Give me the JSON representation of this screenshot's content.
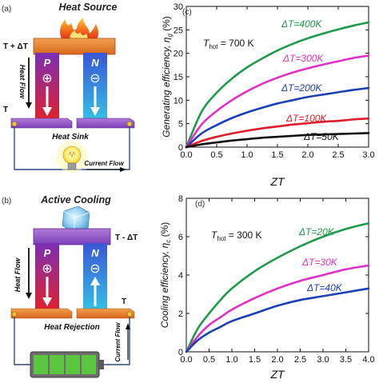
{
  "panels": {
    "a": {
      "tag": "(a)",
      "title": "Heat Source",
      "hot_side": "T + ΔT",
      "cold_side": "T",
      "heat_flow": "Heat Flow",
      "heat_sink": "Heat Sink",
      "current_flow": "Current Flow",
      "leg_p": "P",
      "leg_n": "N",
      "plus": "⊕",
      "minus": "⊖"
    },
    "b": {
      "tag": "(b)",
      "title": "Active Cooling",
      "cold_side": "T - ΔT",
      "hot_side": "T",
      "heat_flow": "Heat Flow",
      "heat_rejection": "Heat Rejection",
      "current_flow": "Current Flow",
      "leg_p": "P",
      "leg_n": "N",
      "plus": "⊕",
      "minus": "⊖"
    }
  },
  "colors": {
    "p_top": "#7b2fb5",
    "p_bottom": "#e3202a",
    "n_top": "#3a55d6",
    "n_bottom": "#34c3e6",
    "plate": "#e8791f",
    "wire": "#2e4a8c"
  },
  "chart_data": [
    {
      "type": "line",
      "tag": "(c)",
      "annotation": "T_hot = 700 K",
      "annotation_main": "T",
      "annotation_sub": "hot",
      "annotation_rest": " = 700 K",
      "xlabel": "ZT",
      "ylabel_main": "Generating efficiency, η",
      "ylabel_sub": "g",
      "ylabel_unit": " (%)",
      "xlim": [
        0,
        3.0
      ],
      "ylim": [
        0,
        30
      ],
      "xticks": [
        "0.0",
        "0.5",
        "1.0",
        "1.5",
        "2.0",
        "2.5",
        "3.0"
      ],
      "yticks": [
        "0",
        "5",
        "10",
        "15",
        "20",
        "25",
        "30"
      ],
      "x": [
        0.0,
        0.25,
        0.5,
        0.75,
        1.0,
        1.25,
        1.5,
        1.75,
        2.0,
        2.25,
        2.5,
        2.75,
        3.0
      ],
      "series": [
        {
          "name": "ΔT=400K",
          "color": "#1e9a4b",
          "values": [
            0.0,
            7.5,
            11.6,
            14.6,
            17.0,
            18.9,
            20.6,
            22.0,
            23.2,
            24.2,
            25.1,
            25.9,
            26.6
          ]
        },
        {
          "name": "ΔT=300K",
          "color": "#e030c8",
          "values": [
            0.0,
            4.8,
            7.7,
            10.0,
            11.9,
            13.5,
            14.8,
            15.9,
            16.8,
            17.6,
            18.3,
            19.0,
            19.5
          ]
        },
        {
          "name": "ΔT=200K",
          "color": "#1b3fb5",
          "values": [
            0.0,
            2.9,
            4.7,
            6.2,
            7.4,
            8.4,
            9.3,
            10.0,
            10.7,
            11.2,
            11.7,
            12.2,
            12.6
          ]
        },
        {
          "name": "ΔT=100K",
          "color": "#e01c2a",
          "values": [
            0.0,
            1.3,
            2.2,
            2.9,
            3.5,
            4.0,
            4.4,
            4.8,
            5.1,
            5.4,
            5.6,
            5.9,
            6.1
          ]
        },
        {
          "name": "ΔT=50K",
          "color": "#111111",
          "values": [
            0.0,
            0.6,
            1.0,
            1.4,
            1.7,
            2.0,
            2.2,
            2.4,
            2.6,
            2.7,
            2.8,
            2.9,
            3.0
          ]
        }
      ]
    },
    {
      "type": "line",
      "tag": "(d)",
      "annotation_main": "T",
      "annotation_sub": "hot",
      "annotation_rest": " = 300 K",
      "xlabel": "ZT",
      "ylabel_main": "Cooling efficiency, η",
      "ylabel_sub": "c",
      "ylabel_unit": " (%)",
      "xlim": [
        0,
        4.0
      ],
      "ylim": [
        0,
        8
      ],
      "xticks": [
        "0.0",
        "0.5",
        "1.0",
        "1.5",
        "2.0",
        "2.5",
        "3.0",
        "3.5",
        "4.0"
      ],
      "yticks": [
        "0",
        "2",
        "4",
        "6",
        "8"
      ],
      "x": [
        0.0,
        0.25,
        0.5,
        0.75,
        1.0,
        1.5,
        2.0,
        2.5,
        3.0,
        3.5,
        4.0
      ],
      "series": [
        {
          "name": "ΔT=20K",
          "color": "#1e9a4b",
          "values": [
            0.0,
            1.2,
            2.0,
            2.7,
            3.3,
            4.2,
            4.9,
            5.5,
            6.0,
            6.4,
            6.7
          ]
        },
        {
          "name": "ΔT=30K",
          "color": "#e030c8",
          "values": [
            0.0,
            0.8,
            1.4,
            1.8,
            2.2,
            2.8,
            3.3,
            3.7,
            4.0,
            4.3,
            4.5
          ]
        },
        {
          "name": "ΔT=40K",
          "color": "#1b3fb5",
          "values": [
            0.0,
            0.6,
            1.0,
            1.3,
            1.6,
            2.0,
            2.4,
            2.7,
            2.9,
            3.1,
            3.3
          ]
        }
      ]
    }
  ]
}
